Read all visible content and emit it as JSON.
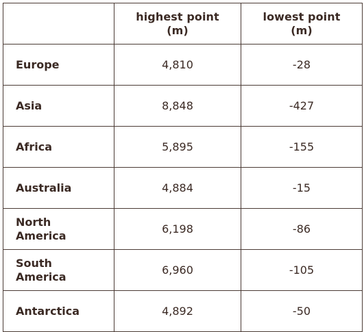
{
  "table": {
    "headers": [
      "",
      "highest point (m)",
      "lowest point (m)"
    ],
    "rows": [
      {
        "label": "Europe",
        "highest": "4,810",
        "lowest": "-28"
      },
      {
        "label": "Asia",
        "highest": "8,848",
        "lowest": "-427"
      },
      {
        "label": "Africa",
        "highest": "5,895",
        "lowest": "-155"
      },
      {
        "label": "Australia",
        "highest": "4,884",
        "lowest": "-15"
      },
      {
        "label": "North America",
        "highest": "6,198",
        "lowest": "-86"
      },
      {
        "label": "South America",
        "highest": "6,960",
        "lowest": "-105"
      },
      {
        "label": "Antarctica",
        "highest": "4,892",
        "lowest": "-50"
      }
    ]
  }
}
